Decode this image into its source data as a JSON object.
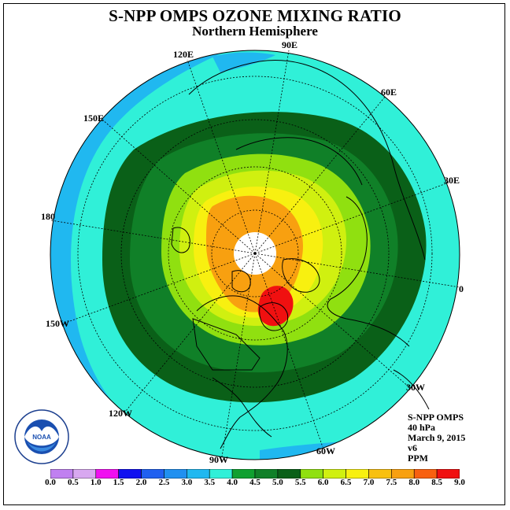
{
  "title": "S-NPP OMPS OZONE MIXING RATIO",
  "subtitle": "Northern Hemisphere",
  "info_lines": [
    "S-NPP OMPS",
    "40 hPa",
    "March 9, 2015",
    "v6",
    "PPM"
  ],
  "longitude_labels": [
    "90E",
    "60E",
    "30E",
    "0",
    "30W",
    "60W",
    "90W",
    "120W",
    "150W",
    "180",
    "150E",
    "120E"
  ],
  "colorbar": {
    "ticks": [
      "0.0",
      "0.5",
      "1.0",
      "1.5",
      "2.0",
      "2.5",
      "3.0",
      "3.5",
      "4.0",
      "4.5",
      "5.0",
      "5.5",
      "6.0",
      "6.5",
      "7.0",
      "7.5",
      "8.0",
      "8.5",
      "9.0"
    ],
    "colors": [
      "#c080f0",
      "#d8a8f0",
      "#f010f0",
      "#1010f0",
      "#2060f0",
      "#2090f0",
      "#20b8f0",
      "#30f0d8",
      "#10a030",
      "#108028",
      "#0a6018",
      "#90e010",
      "#d0f010",
      "#f8f010",
      "#f8c010",
      "#f8a010",
      "#f86010",
      "#f01010",
      "#805030"
    ],
    "unit": "PPM"
  },
  "map_colors": {
    "outer_cyan": "#30f0d8",
    "blue_band": "#20b8f0",
    "dark_green": "#0a6018",
    "green": "#108028",
    "light_green": "#90e010",
    "yellow_green": "#d0f010",
    "yellow": "#f8f010",
    "orange": "#f8a010",
    "red": "#f01010",
    "pole_hole": "#ffffff"
  },
  "logo_text": "NOAA"
}
